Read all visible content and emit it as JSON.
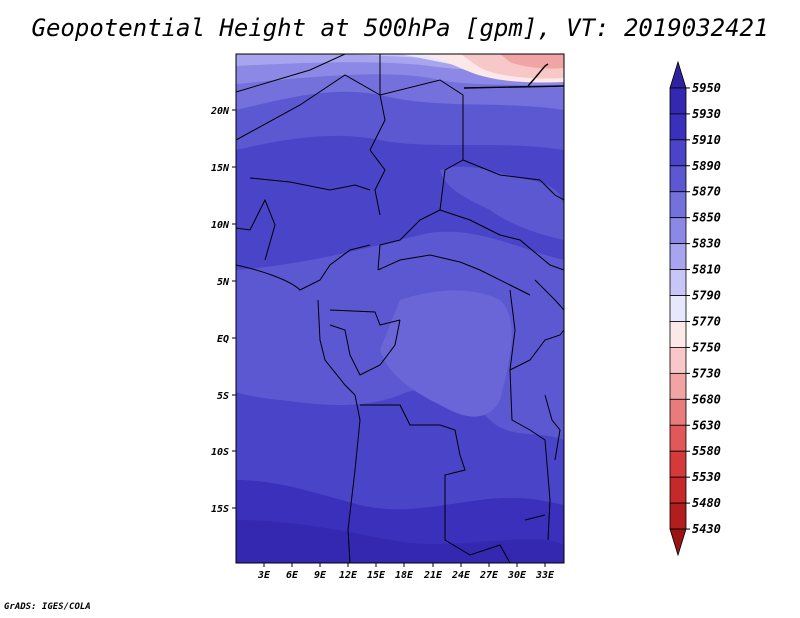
{
  "title": "Geopotential Height at 500hPa [gpm], VT: 2019032421",
  "credit": "GrADS: IGES/COLA",
  "map": {
    "lat_labels": [
      "20N",
      "15N",
      "10N",
      "5N",
      "EQ",
      "5S",
      "10S",
      "15S"
    ],
    "lon_labels": [
      "3E",
      "6E",
      "9E",
      "12E",
      "15E",
      "18E",
      "21E",
      "24E",
      "27E",
      "30E",
      "33E"
    ]
  },
  "colorbar": {
    "labels": [
      "5950",
      "5930",
      "5910",
      "5890",
      "5870",
      "5850",
      "5830",
      "5810",
      "5790",
      "5770",
      "5750",
      "5730",
      "5680",
      "5630",
      "5580",
      "5530",
      "5480",
      "5430"
    ],
    "colors": [
      "#2e22a0",
      "#3428b0",
      "#3a30bc",
      "#4a44c8",
      "#5c58d2",
      "#7470dc",
      "#8c88e6",
      "#a8a4ee",
      "#c8c6f6",
      "#e8e8fc",
      "#fce8e8",
      "#f8c8c8",
      "#f0a4a4",
      "#e87c7c",
      "#e05858",
      "#d43a3a",
      "#c42a2a",
      "#b01e1e",
      "#9a1414"
    ]
  }
}
